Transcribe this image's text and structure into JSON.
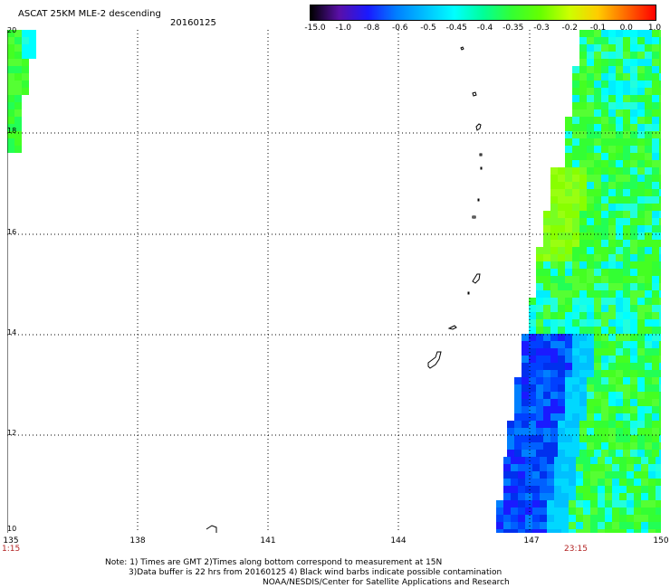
{
  "header": {
    "title": "ASCAT 25KM MLE-2 descending",
    "date": "20160125"
  },
  "colorbar": {
    "labels": [
      "-15.0",
      "-1.0",
      "-0.8",
      "-0.6",
      "-0.5",
      "-0.45",
      "-0.4",
      "-0.35",
      "-0.3",
      "-0.2",
      "-0.1",
      "0.0",
      "1.0"
    ],
    "colors": [
      "#000000",
      "#5a0fa8",
      "#1a1aff",
      "#0080ff",
      "#00c0ff",
      "#00ffff",
      "#00ff99",
      "#33ff33",
      "#66ff00",
      "#ccff00",
      "#ffcc00",
      "#ff6600",
      "#ff0000"
    ]
  },
  "map": {
    "lon_range": [
      135,
      150
    ],
    "lat_range": [
      10,
      20
    ],
    "lon_ticks": [
      "135",
      "138",
      "141",
      "144",
      "147",
      "150"
    ],
    "lat_ticks": [
      "20",
      "18",
      "16",
      "14",
      "12",
      "10"
    ]
  },
  "times": {
    "left": "1:15",
    "right": "23:15"
  },
  "notes": {
    "line1": "Note: 1) Times are GMT 2)Times along bottom correspond to measurement at 15N",
    "line2": "3)Data buffer is 22 hrs from 20160125 4) Black wind barbs indicate possible contamination",
    "line3": "NOAA/NESDIS/Center for Satellite Applications and Research"
  }
}
